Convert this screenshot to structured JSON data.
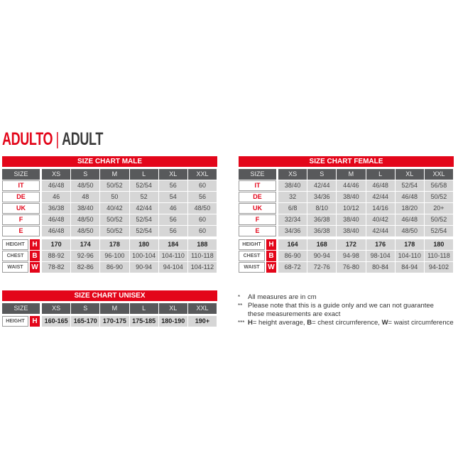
{
  "heading": {
    "main": "ADULTO",
    "separator": "|",
    "sub": "ADULT"
  },
  "size_label": "SIZE",
  "sizes": [
    "XS",
    "S",
    "M",
    "L",
    "XL",
    "XXL"
  ],
  "charts": [
    {
      "title": "SIZE CHART MALE",
      "size_rows": [
        {
          "label": "IT",
          "values": [
            "46/48",
            "48/50",
            "50/52",
            "52/54",
            "56",
            "60"
          ]
        },
        {
          "label": "DE",
          "values": [
            "46",
            "48",
            "50",
            "52",
            "54",
            "56"
          ]
        },
        {
          "label": "UK",
          "values": [
            "36/38",
            "38/40",
            "40/42",
            "42/44",
            "46",
            "48/50"
          ]
        },
        {
          "label": "F",
          "values": [
            "46/48",
            "48/50",
            "50/52",
            "52/54",
            "56",
            "60"
          ]
        },
        {
          "label": "E",
          "values": [
            "46/48",
            "48/50",
            "50/52",
            "52/54",
            "56",
            "60"
          ]
        }
      ],
      "measure_rows": [
        {
          "label": "HEIGHT",
          "key": "H",
          "values": [
            "170",
            "174",
            "178",
            "180",
            "184",
            "188"
          ]
        },
        {
          "label": "CHEST",
          "key": "B",
          "values": [
            "88-92",
            "92-96",
            "96-100",
            "100-104",
            "104-110",
            "110-118"
          ]
        },
        {
          "label": "WAIST",
          "key": "W",
          "values": [
            "78-82",
            "82-86",
            "86-90",
            "90-94",
            "94-104",
            "104-112"
          ]
        }
      ]
    },
    {
      "title": "SIZE CHART FEMALE",
      "size_rows": [
        {
          "label": "IT",
          "values": [
            "38/40",
            "42/44",
            "44/46",
            "46/48",
            "52/54",
            "56/58"
          ]
        },
        {
          "label": "DE",
          "values": [
            "32",
            "34/36",
            "38/40",
            "42/44",
            "46/48",
            "50/52"
          ]
        },
        {
          "label": "UK",
          "values": [
            "6/8",
            "8/10",
            "10/12",
            "14/16",
            "18/20",
            "20+"
          ]
        },
        {
          "label": "F",
          "values": [
            "32/34",
            "36/38",
            "38/40",
            "40/42",
            "46/48",
            "50/52"
          ]
        },
        {
          "label": "E",
          "values": [
            "34/36",
            "36/38",
            "38/40",
            "42/44",
            "48/50",
            "52/54"
          ]
        }
      ],
      "measure_rows": [
        {
          "label": "HEIGHT",
          "key": "H",
          "values": [
            "164",
            "168",
            "172",
            "176",
            "178",
            "180"
          ]
        },
        {
          "label": "CHEST",
          "key": "B",
          "values": [
            "86-90",
            "90-94",
            "94-98",
            "98-104",
            "104-110",
            "110-118"
          ]
        },
        {
          "label": "WAIST",
          "key": "W",
          "values": [
            "68-72",
            "72-76",
            "76-80",
            "80-84",
            "84-94",
            "94-102"
          ]
        }
      ]
    },
    {
      "title": "SIZE CHART UNISEX",
      "size_rows": [],
      "measure_rows": [
        {
          "label": "HEIGHT",
          "key": "H",
          "values": [
            "160-165",
            "165-170",
            "170-175",
            "175-185",
            "180-190",
            "190+"
          ]
        }
      ]
    }
  ],
  "notes": [
    {
      "marker": "*",
      "text": "All measures are in cm"
    },
    {
      "marker": "**",
      "text": "Please note that this is a guide only and we can not guarantee these measurements are exact"
    },
    {
      "marker": "***",
      "parts": [
        {
          "b": "H",
          "t": "= height average, "
        },
        {
          "b": "B",
          "t": "= chest circumference, "
        },
        {
          "b": "W",
          "t": "= waist circumference"
        }
      ]
    }
  ]
}
